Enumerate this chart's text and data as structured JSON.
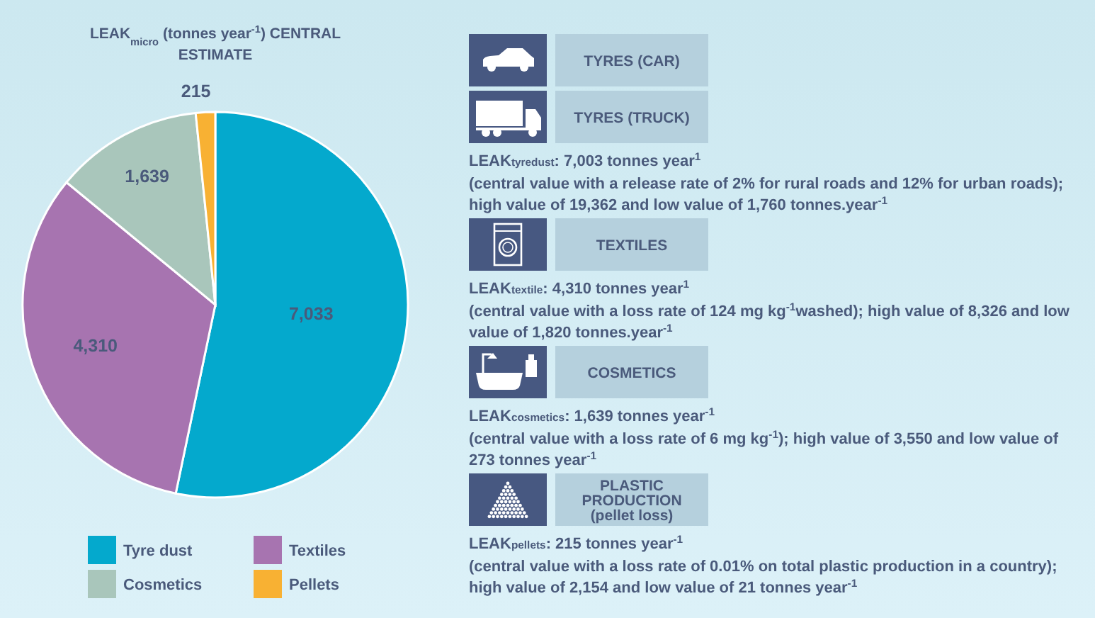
{
  "chart_data": [
    {
      "type": "pie",
      "title": "LEAK$_{micro}$ (tonnes year$^{-1}$) CENTRAL ESTIMATE",
      "categories": [
        "Tyre dust",
        "Textiles",
        "Cosmetics",
        "Pellets"
      ],
      "values": [
        7033,
        4310,
        1639,
        215
      ],
      "value_labels": [
        "7,033",
        "4,310",
        "1,639",
        "215"
      ],
      "colors": [
        "#04a9cd",
        "#a774b0",
        "#a9c6bb",
        "#f8b133"
      ],
      "legend": "bottom"
    },
    {
      "type": "other",
      "annotations": [
        "TYRES (CAR)",
        "TYRES (TRUCK)",
        "LEAK$_{tyredust}$: 7,003 tonnes year$^{1}$",
        "(central value with a release rate of 2% for rural roads and 12% for urban roads); high value of 19,362 and low value of 1,760 tonnes.year$^{-1}$",
        "TEXTILES",
        "LEAK$_{textile}$: 4,310 tonnes year$^{1}$",
        "(central value with a loss rate of 124 mg kg$^{-1}$washed); high value of 8,326 and low value of 1,820 tonnes.year$^{-1}$",
        "COSMETICS",
        "LEAK$_{cosmetics}$: 1,639 tonnes year$^{-1}$",
        "(central value with a loss rate of 6 mg kg$^{-1}$); high value of 3,550 and low value of 273 tonnes year$^{-1}$",
        "PLASTIC PRODUCTION (pellet loss)",
        "LEAK$_{pellets}$: 215 tonnes year$^{-1}$",
        "(central value with a loss rate of 0.01% on total plastic production in a country); high value of 2,154 and low value of 21 tonnes year$^{-1}$"
      ]
    }
  ]
}
